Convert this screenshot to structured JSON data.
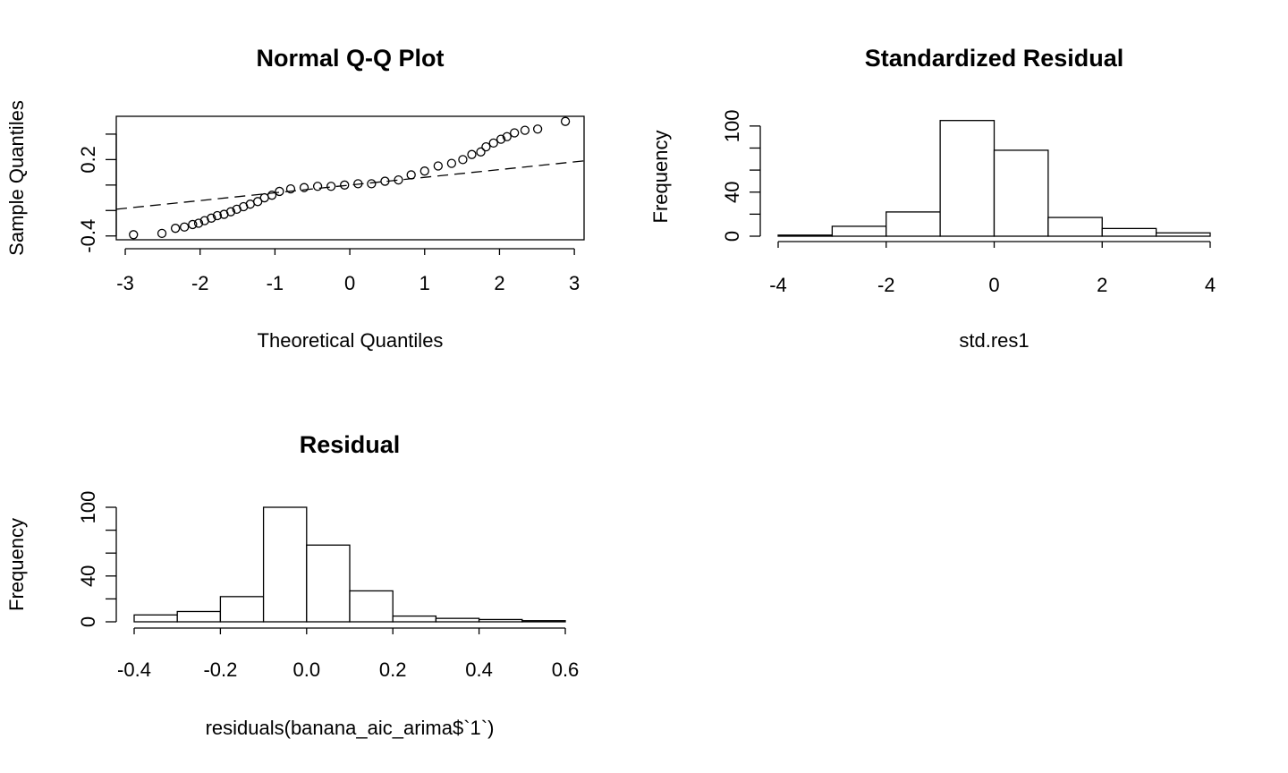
{
  "chart_data": [
    {
      "type": "scatter",
      "title": "Normal Q-Q Plot",
      "x_label": "Theoretical Quantiles",
      "y_label": "Sample Quantiles",
      "x": [
        -2.89,
        -2.51,
        -2.33,
        -2.21,
        -2.1,
        -2.02,
        -1.94,
        -1.85,
        -1.77,
        -1.68,
        -1.59,
        -1.51,
        -1.42,
        -1.33,
        -1.23,
        -1.14,
        -1.04,
        -0.94,
        -0.79,
        -0.61,
        -0.43,
        -0.25,
        -0.07,
        0.11,
        0.29,
        0.47,
        0.65,
        0.82,
        1.0,
        1.18,
        1.36,
        1.51,
        1.63,
        1.75,
        1.82,
        1.92,
        2.02,
        2.1,
        2.2,
        2.34,
        2.51,
        2.88
      ],
      "values": [
        -0.39,
        -0.38,
        -0.34,
        -0.33,
        -0.31,
        -0.3,
        -0.28,
        -0.26,
        -0.24,
        -0.23,
        -0.21,
        -0.19,
        -0.17,
        -0.15,
        -0.13,
        -0.1,
        -0.08,
        -0.05,
        -0.03,
        -0.02,
        -0.01,
        -0.01,
        0,
        0.01,
        0.01,
        0.03,
        0.04,
        0.08,
        0.11,
        0.15,
        0.17,
        0.2,
        0.24,
        0.26,
        0.3,
        0.33,
        0.36,
        0.38,
        0.41,
        0.43,
        0.44,
        0.5
      ],
      "color": "#000000",
      "line": {
        "x": [
          -3.12,
          3.13
        ],
        "y": [
          -0.19,
          0.19
        ],
        "color": "#ff0000",
        "dashed": true
      },
      "xlim": [
        -3.12,
        3.13
      ],
      "ylim": [
        -0.43,
        0.54
      ],
      "xticks": [
        -3,
        -2,
        -1,
        0,
        1,
        2,
        3
      ],
      "yticks": [
        -0.4,
        0.2
      ],
      "yminorticks": [
        -0.2,
        0,
        0.4
      ]
    },
    {
      "type": "histogram",
      "title": "Standardized Residual",
      "x_label": "std.res1",
      "y_label": "Frequency",
      "bins": [
        -4,
        -3,
        -2,
        -1,
        0,
        1,
        2,
        3,
        4
      ],
      "values": [
        1,
        9,
        22,
        105,
        78,
        17,
        7,
        3
      ],
      "color": "#ffffff",
      "xlim": [
        -4,
        4
      ],
      "ylim": [
        0,
        108
      ],
      "xticks": [
        -4,
        -2,
        0,
        2,
        4
      ],
      "yticks": [
        0,
        40,
        100
      ],
      "yminorticks": [
        20,
        60,
        80
      ]
    },
    {
      "type": "histogram",
      "title": "Residual",
      "x_label": "residuals(banana_aic_arima$`1`)",
      "y_label": "Frequency",
      "bins": [
        -0.4,
        -0.3,
        -0.2,
        -0.1,
        0,
        0.1,
        0.2,
        0.3,
        0.4,
        0.5,
        0.6
      ],
      "values": [
        6,
        9,
        22,
        100,
        67,
        27,
        5,
        3,
        2,
        1
      ],
      "color": "#ffffff",
      "xlim": [
        -0.4,
        0.6
      ],
      "ylim": [
        0,
        100
      ],
      "xticks": [
        -0.4,
        -0.2,
        {
          "value": 0,
          "label": "0.0"
        },
        0.2,
        0.4,
        0.6
      ],
      "yticks": [
        0,
        40,
        100
      ],
      "yminorticks": [
        20,
        60,
        80
      ]
    }
  ]
}
